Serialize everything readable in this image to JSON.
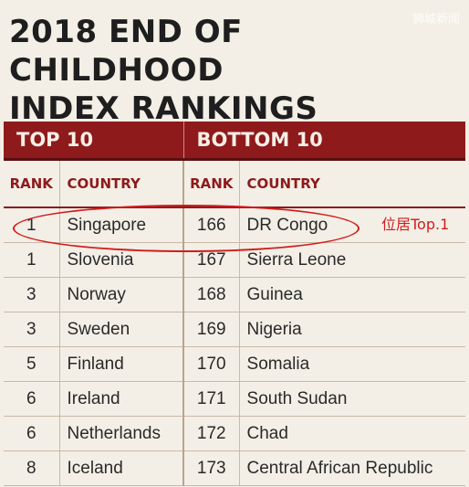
{
  "title_line1": "2018 END OF CHILDHOOD",
  "title_line2": "INDEX RANKINGS",
  "watermark": "狮城新闻",
  "table": {
    "top_heading": "TOP 10",
    "bottom_heading": "BOTTOM 10",
    "col_rank": "RANK",
    "col_country": "COUNTRY",
    "rows": [
      {
        "rank": "1",
        "country": "Singapore",
        "rank2": "166",
        "country2": "DR Congo"
      },
      {
        "rank": "1",
        "country": "Slovenia",
        "rank2": "167",
        "country2": "Sierra Leone"
      },
      {
        "rank": "3",
        "country": "Norway",
        "rank2": "168",
        "country2": "Guinea"
      },
      {
        "rank": "3",
        "country": "Sweden",
        "rank2": "169",
        "country2": "Nigeria"
      },
      {
        "rank": "5",
        "country": "Finland",
        "rank2": "170",
        "country2": "Somalia"
      },
      {
        "rank": "6",
        "country": "Ireland",
        "rank2": "171",
        "country2": "South Sudan"
      },
      {
        "rank": "6",
        "country": "Netherlands",
        "rank2": "172",
        "country2": "Chad"
      },
      {
        "rank": "8",
        "country": "Iceland",
        "rank2": "173",
        "country2": "Central African Republic"
      }
    ]
  },
  "annotation": {
    "text": "位居Top.1",
    "color": "#d11d1d"
  },
  "colors": {
    "header_bg": "#8e1a1c",
    "page_bg": "#f3efe6"
  }
}
